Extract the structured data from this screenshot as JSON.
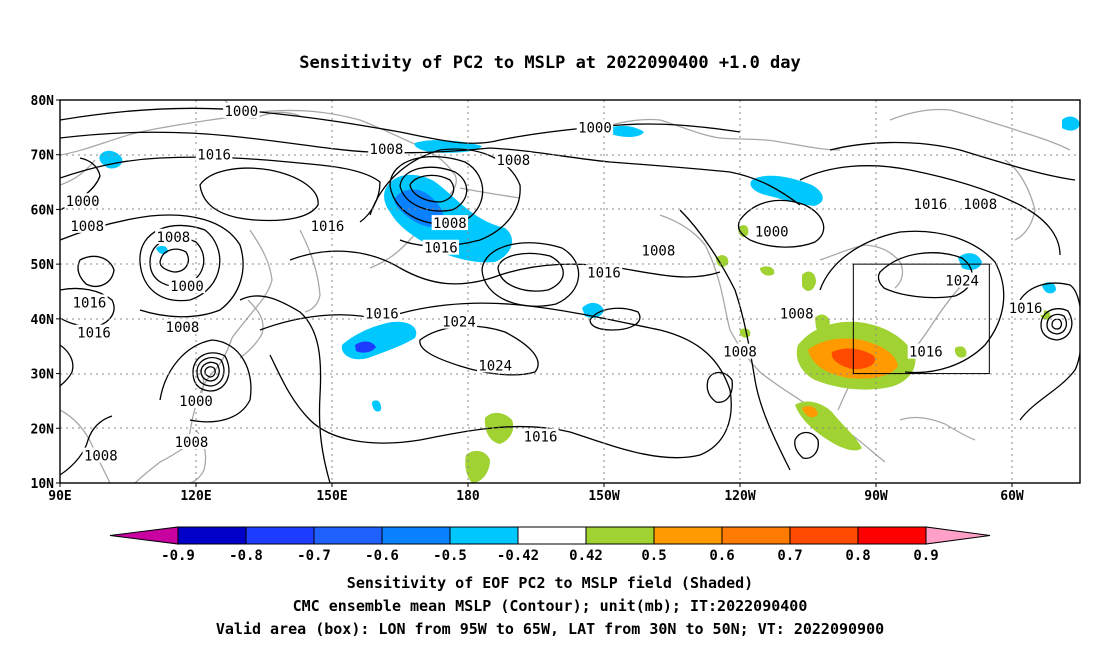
{
  "title": "Sensitivity of PC2 to MSLP at 2022090400 +1.0 day",
  "map": {
    "lon_labels": [
      "90E",
      "120E",
      "150E",
      "180",
      "150W",
      "120W",
      "90W",
      "60W"
    ],
    "lat_labels": [
      "80N",
      "70N",
      "60N",
      "50N",
      "40N",
      "30N",
      "20N",
      "10N"
    ],
    "contour_labels": [
      {
        "text": "1000",
        "lon": 130,
        "lat": 78
      },
      {
        "text": "1000",
        "lon": -152,
        "lat": 75
      },
      {
        "text": "1016",
        "lon": 124,
        "lat": 70
      },
      {
        "text": "1008",
        "lon": 162,
        "lat": 71
      },
      {
        "text": "1008",
        "lon": -170,
        "lat": 69
      },
      {
        "text": "1000",
        "lon": 95,
        "lat": 61.5
      },
      {
        "text": "1008",
        "lon": 96,
        "lat": 57
      },
      {
        "text": "1016",
        "lon": 149,
        "lat": 57
      },
      {
        "text": "1008",
        "lon": 176,
        "lat": 57.5
      },
      {
        "text": "1008",
        "lon": 115,
        "lat": 55
      },
      {
        "text": "1016",
        "lon": 174,
        "lat": 53
      },
      {
        "text": "1000",
        "lon": -113,
        "lat": 56
      },
      {
        "text": "1016",
        "lon": -78,
        "lat": 61
      },
      {
        "text": "1008",
        "lon": -67,
        "lat": 61
      },
      {
        "text": "1008",
        "lon": -138,
        "lat": 52.5
      },
      {
        "text": "1016",
        "lon": -150,
        "lat": 48.5
      },
      {
        "text": "1000",
        "lon": 118,
        "lat": 46
      },
      {
        "text": "1024",
        "lon": -71,
        "lat": 47
      },
      {
        "text": "1016",
        "lon": 96.5,
        "lat": 43
      },
      {
        "text": "1016",
        "lon": 97.5,
        "lat": 37.5
      },
      {
        "text": "1016",
        "lon": 161,
        "lat": 41
      },
      {
        "text": "1024",
        "lon": 178,
        "lat": 39.5
      },
      {
        "text": "1008",
        "lon": 117,
        "lat": 38.5
      },
      {
        "text": "1008",
        "lon": -107.5,
        "lat": 41
      },
      {
        "text": "1016",
        "lon": -57,
        "lat": 42
      },
      {
        "text": "1016",
        "lon": -79,
        "lat": 34
      },
      {
        "text": "1008",
        "lon": -120,
        "lat": 34
      },
      {
        "text": "1024",
        "lon": -174,
        "lat": 31.5
      },
      {
        "text": "1000",
        "lon": 120,
        "lat": 25
      },
      {
        "text": "1016",
        "lon": -164,
        "lat": 18.5
      },
      {
        "text": "1008",
        "lon": 119,
        "lat": 17.5
      },
      {
        "text": "1008",
        "lon": 99,
        "lat": 15
      }
    ],
    "box": {
      "lon_west": -95,
      "lon_east": -65,
      "lat_south": 30,
      "lat_north": 50
    }
  },
  "colorbar": {
    "labels": [
      "-0.9",
      "-0.8",
      "-0.7",
      "-0.6",
      "-0.5",
      "-0.42",
      "0.42",
      "0.5",
      "0.6",
      "0.7",
      "0.8",
      "0.9"
    ],
    "colors": [
      "#0000c8",
      "#1e3cff",
      "#2060ff",
      "#0a82ff",
      "#00c8ff",
      "#ffffff",
      "#a0d232",
      "#ff9a00",
      "#ff7a00",
      "#ff4a00",
      "#ff0000"
    ],
    "end_low": "#c800a0",
    "end_high": "#ffa0c8"
  },
  "caption": {
    "line1": "Sensitivity of EOF PC2 to MSLP field (Shaded)",
    "line2": "CMC ensemble mean MSLP (Contour); unit(mb); IT:2022090400",
    "line3": "Valid area (box): LON from 95W to 65W, LAT from 30N to 50N; VT: 2022090900"
  }
}
